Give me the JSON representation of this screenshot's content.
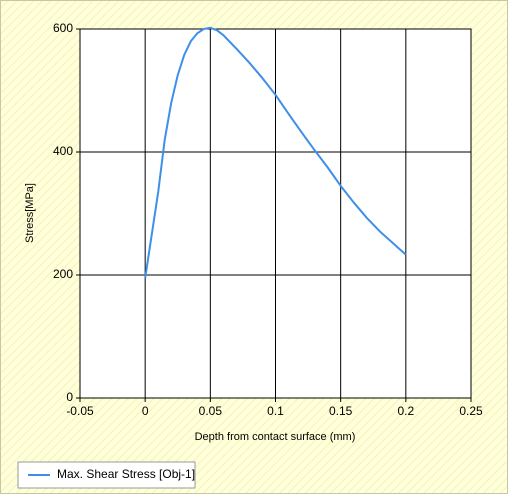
{
  "chart_data": {
    "type": "line",
    "xlabel": "Depth from contact surface (mm)",
    "ylabel": "Stress[MPa]",
    "x": [
      0,
      0.005,
      0.01,
      0.015,
      0.02,
      0.025,
      0.03,
      0.035,
      0.04,
      0.045,
      0.05,
      0.055,
      0.06,
      0.07,
      0.08,
      0.09,
      0.1,
      0.11,
      0.12,
      0.13,
      0.14,
      0.15,
      0.16,
      0.17,
      0.18,
      0.19,
      0.2
    ],
    "series": [
      {
        "name": "Max. Shear Stress [Obj-1]",
        "color": "#3d8fea",
        "values": [
          195,
          265,
          335,
          420,
          480,
          525,
          558,
          580,
          593,
          600,
          602,
          598,
          590,
          568,
          545,
          520,
          493,
          462,
          432,
          403,
          375,
          345,
          318,
          293,
          271,
          252,
          233
        ]
      }
    ],
    "xlim": [
      -0.05,
      0.25
    ],
    "xticks": [
      -0.05,
      0,
      0.05,
      0.1,
      0.15,
      0.2,
      0.25
    ],
    "ylim": [
      0,
      600
    ],
    "yticks": [
      0,
      200,
      400,
      600
    ],
    "grid": true,
    "legend": "bottom-left"
  }
}
